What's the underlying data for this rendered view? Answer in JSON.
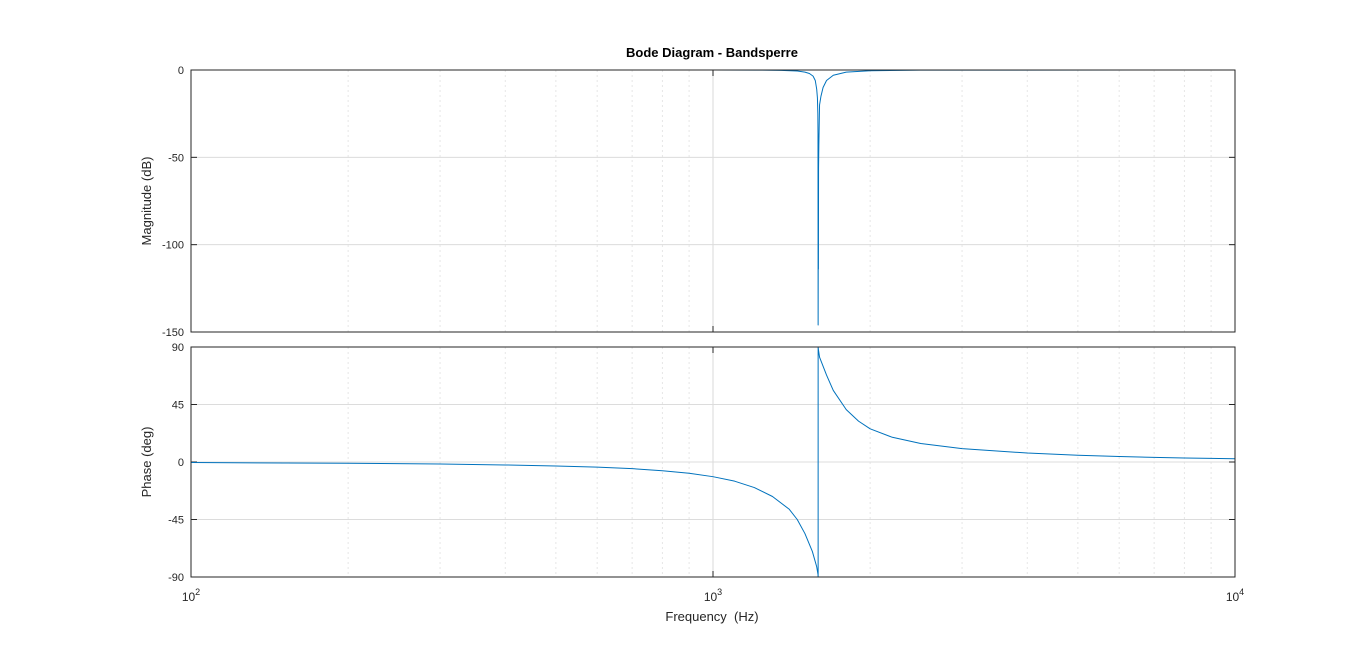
{
  "chart_data": {
    "type": "line",
    "title": "Bode Diagram - Bandsperre",
    "xlabel": "Frequency  (Hz)",
    "x_scale": "log",
    "xlim": [
      100,
      10000
    ],
    "x_ticks": [
      {
        "value": 100,
        "base": "10",
        "exp": "2"
      },
      {
        "value": 1000,
        "base": "10",
        "exp": "3"
      },
      {
        "value": 10000,
        "base": "10",
        "exp": "4"
      }
    ],
    "grid": true,
    "line_color": "#0072bd",
    "notch_frequency_hz": 1590,
    "panels": [
      {
        "name": "magnitude",
        "ylabel": "Magnitude (dB)",
        "ylim": [
          -150,
          0
        ],
        "yticks": [
          0,
          -50,
          -100,
          -150
        ],
        "points": [
          [
            100,
            0
          ],
          [
            500,
            0
          ],
          [
            1000,
            -0.01
          ],
          [
            1200,
            -0.05
          ],
          [
            1350,
            -0.2
          ],
          [
            1450,
            -0.6
          ],
          [
            1500,
            -1.2
          ],
          [
            1530,
            -2.0
          ],
          [
            1555,
            -3.5
          ],
          [
            1570,
            -6
          ],
          [
            1580,
            -11
          ],
          [
            1585,
            -16
          ],
          [
            1588,
            -25
          ],
          [
            1589,
            -36
          ],
          [
            1590,
            -146
          ],
          [
            1591,
            -96
          ],
          [
            1592,
            -114
          ],
          [
            1593,
            -56
          ],
          [
            1595,
            -43
          ],
          [
            1600,
            -20
          ],
          [
            1610,
            -15
          ],
          [
            1625,
            -10
          ],
          [
            1650,
            -6
          ],
          [
            1700,
            -3
          ],
          [
            1800,
            -1.2
          ],
          [
            2000,
            -0.4
          ],
          [
            2500,
            -0.1
          ],
          [
            10000,
            0
          ]
        ]
      },
      {
        "name": "phase",
        "ylabel": "Phase (deg)",
        "ylim": [
          -90,
          90
        ],
        "yticks": [
          90,
          45,
          0,
          -45,
          -90
        ],
        "points": [
          [
            100,
            -0.4
          ],
          [
            200,
            -1.0
          ],
          [
            300,
            -1.6
          ],
          [
            400,
            -2.3
          ],
          [
            500,
            -3.1
          ],
          [
            600,
            -4.0
          ],
          [
            700,
            -5.2
          ],
          [
            800,
            -6.8
          ],
          [
            900,
            -8.8
          ],
          [
            1000,
            -11.5
          ],
          [
            1100,
            -15
          ],
          [
            1200,
            -20
          ],
          [
            1300,
            -27
          ],
          [
            1400,
            -37
          ],
          [
            1450,
            -45
          ],
          [
            1500,
            -56
          ],
          [
            1550,
            -70
          ],
          [
            1580,
            -82
          ],
          [
            1589,
            -88
          ],
          [
            1590,
            -90
          ],
          [
            1590,
            90
          ],
          [
            1592,
            88
          ],
          [
            1600,
            82
          ],
          [
            1650,
            68
          ],
          [
            1700,
            56
          ],
          [
            1800,
            41
          ],
          [
            1900,
            32
          ],
          [
            2000,
            26
          ],
          [
            2200,
            19.5
          ],
          [
            2500,
            14.5
          ],
          [
            3000,
            10.5
          ],
          [
            4000,
            7
          ],
          [
            5000,
            5.3
          ],
          [
            6000,
            4.3
          ],
          [
            7000,
            3.6
          ],
          [
            8000,
            3.1
          ],
          [
            9000,
            2.8
          ],
          [
            10000,
            2.5
          ]
        ]
      }
    ]
  }
}
